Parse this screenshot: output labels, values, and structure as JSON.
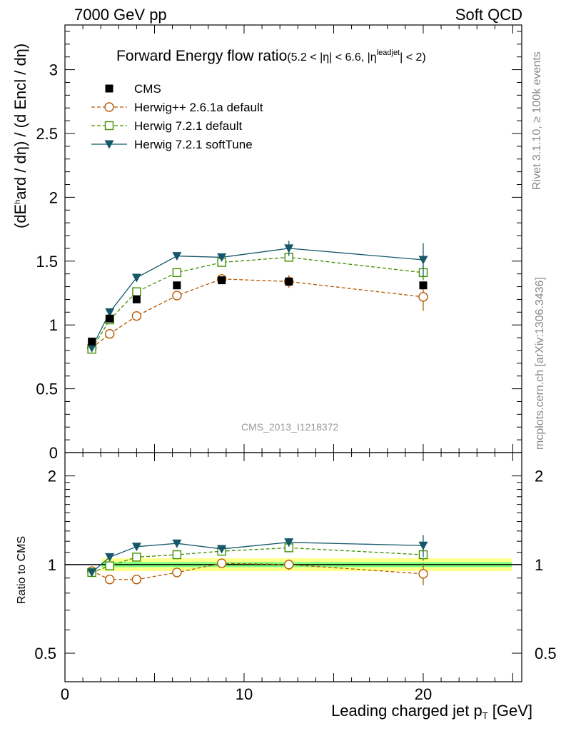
{
  "header": {
    "left": "7000 GeV pp",
    "right": "Soft QCD"
  },
  "side_labels": {
    "rivet": "Rivet 3.1.10, ≥ 100k events",
    "mcplots": "mcplots.cern.ch [arXiv:1306.3436]"
  },
  "colors": {
    "cms": "#000000",
    "herwigpp": "#b35900",
    "herwig721": "#3d8f00",
    "softtune": "#15586a",
    "band_outer": "#ffff8c",
    "band_inner": "#80ff80"
  },
  "chart_data": [
    {
      "type": "line",
      "title_main": "Forward Energy flow ratio",
      "title_cut_a": "(5.2 < |η| < 6.6, |η",
      "title_cut_sup": "leadjet",
      "title_cut_b": "| < 2)",
      "watermark": "CMS_2013_I1218372",
      "ylabel_a": "(dE",
      "ylabel_sup": "h",
      "ylabel_b": "ard / dη) / (d Encl / dη)",
      "xlim": [
        0,
        25.5
      ],
      "ylim": [
        0,
        3.35
      ],
      "yticks": [
        0,
        0.5,
        1,
        1.5,
        2,
        2.5,
        3
      ],
      "ytick_labels": [
        "0",
        "0.5",
        "1",
        "1.5",
        "2",
        "2.5",
        "3"
      ],
      "x": [
        1.5,
        2.5,
        4,
        6.25,
        8.75,
        12.5,
        20
      ],
      "series": [
        {
          "name": "CMS",
          "marker": "square-filled",
          "values": [
            0.87,
            1.05,
            1.2,
            1.31,
            1.35,
            1.34,
            1.31
          ],
          "errors": [
            0.01,
            0.01,
            0.01,
            0.01,
            0.01,
            0.01,
            0.01
          ]
        },
        {
          "name": "Herwig++ 2.6.1a default",
          "marker": "circle-open",
          "dash": "dashed",
          "values": [
            0.82,
            0.93,
            1.07,
            1.23,
            1.36,
            1.34,
            1.22
          ],
          "errors": [
            0.01,
            0.01,
            0.01,
            0.01,
            0.03,
            0.05,
            0.11
          ]
        },
        {
          "name": "Herwig 7.2.1 default",
          "marker": "square-open",
          "dash": "dashed",
          "values": [
            0.81,
            1.04,
            1.26,
            1.41,
            1.49,
            1.53,
            1.41
          ],
          "errors": [
            0.01,
            0.01,
            0.01,
            0.01,
            0.02,
            0.03,
            0.06
          ]
        },
        {
          "name": "Herwig 7.2.1 softTune",
          "marker": "triangle-down-filled",
          "dash": "solid",
          "values": [
            0.82,
            1.1,
            1.37,
            1.54,
            1.53,
            1.6,
            1.51
          ],
          "errors": [
            0.01,
            0.01,
            0.01,
            0.02,
            0.03,
            0.06,
            0.13
          ]
        }
      ]
    },
    {
      "type": "line",
      "ylabel": "Ratio to CMS",
      "xlabel_a": "Leading charged jet p",
      "xlabel_sub": "T",
      "xlabel_b": " [GeV]",
      "yscale": "log",
      "ylim": [
        0.4,
        2.4
      ],
      "yticks": [
        0.5,
        1,
        2
      ],
      "ytick_labels": [
        "0.5",
        "1",
        "2"
      ],
      "xticks": [
        0,
        10,
        20
      ],
      "xtick_labels": [
        "0",
        "10",
        "20"
      ],
      "band_x": [
        1,
        25.5
      ],
      "band_outer": [
        0.95,
        1.05
      ],
      "band_inner": [
        0.98,
        1.02
      ],
      "x": [
        1.5,
        2.5,
        4,
        6.25,
        8.75,
        12.5,
        20
      ],
      "series": [
        {
          "name": "Herwig++ 2.6.1a default",
          "values": [
            0.95,
            0.89,
            0.89,
            0.94,
            1.01,
            1.0,
            0.93
          ],
          "errors": [
            0.01,
            0.01,
            0.01,
            0.01,
            0.02,
            0.04,
            0.08
          ]
        },
        {
          "name": "Herwig 7.2.1 default",
          "values": [
            0.94,
            0.99,
            1.06,
            1.08,
            1.11,
            1.14,
            1.08
          ],
          "errors": [
            0.01,
            0.01,
            0.01,
            0.01,
            0.01,
            0.02,
            0.05
          ]
        },
        {
          "name": "Herwig 7.2.1 softTune",
          "values": [
            0.94,
            1.06,
            1.15,
            1.18,
            1.13,
            1.19,
            1.16
          ],
          "errors": [
            0.01,
            0.01,
            0.01,
            0.01,
            0.02,
            0.04,
            0.1
          ]
        }
      ]
    }
  ]
}
